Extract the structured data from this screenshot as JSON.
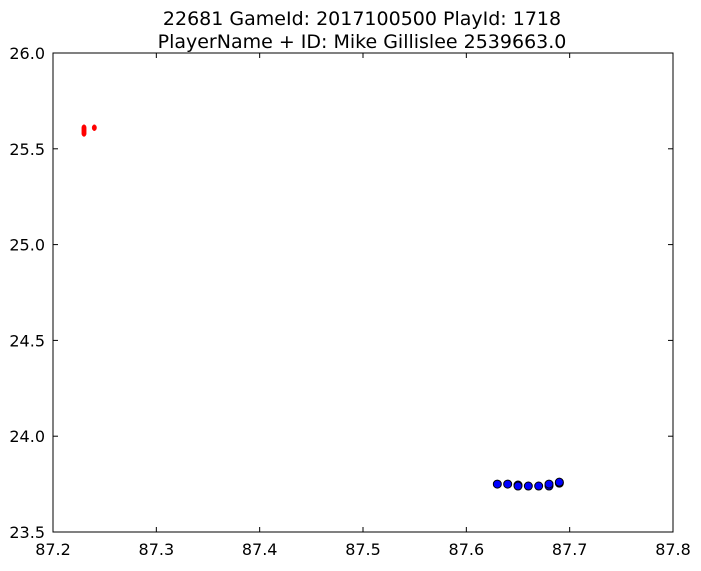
{
  "chart_data": {
    "type": "scatter",
    "title": "22681 GameId: 2017100500 PlayId: 1718",
    "subtitle": "PlayerName + ID: Mike Gillislee 2539663.0",
    "xlabel": "",
    "ylabel": "",
    "xlim": [
      87.2,
      87.8
    ],
    "ylim": [
      23.5,
      26.0
    ],
    "x_ticks": [
      87.2,
      87.3,
      87.4,
      87.5,
      87.6,
      87.7,
      87.8
    ],
    "x_tick_labels": [
      "87.2",
      "87.3",
      "87.4",
      "87.5",
      "87.6",
      "87.7",
      "87.8"
    ],
    "y_ticks": [
      23.5,
      24.0,
      24.5,
      25.0,
      25.5,
      26.0
    ],
    "y_tick_labels": [
      "23.5",
      "24.0",
      "24.5",
      "25.0",
      "25.5",
      "26.0"
    ],
    "grid": false,
    "legend": "none",
    "series": [
      {
        "color": "#ff0000",
        "marker": "small-dot",
        "points": [
          {
            "x": 87.23,
            "y": 25.61
          },
          {
            "x": 87.23,
            "y": 25.6
          },
          {
            "x": 87.23,
            "y": 25.59
          },
          {
            "x": 87.23,
            "y": 25.58
          },
          {
            "x": 87.24,
            "y": 25.61
          }
        ]
      },
      {
        "color": "#0000ff",
        "marker": "circle",
        "points": [
          {
            "x": 87.63,
            "y": 23.75
          },
          {
            "x": 87.64,
            "y": 23.75
          },
          {
            "x": 87.65,
            "y": 23.745
          },
          {
            "x": 87.65,
            "y": 23.74
          },
          {
            "x": 87.66,
            "y": 23.74
          },
          {
            "x": 87.67,
            "y": 23.74
          },
          {
            "x": 87.68,
            "y": 23.74
          },
          {
            "x": 87.68,
            "y": 23.75
          },
          {
            "x": 87.69,
            "y": 23.755
          },
          {
            "x": 87.69,
            "y": 23.76
          }
        ]
      }
    ]
  }
}
